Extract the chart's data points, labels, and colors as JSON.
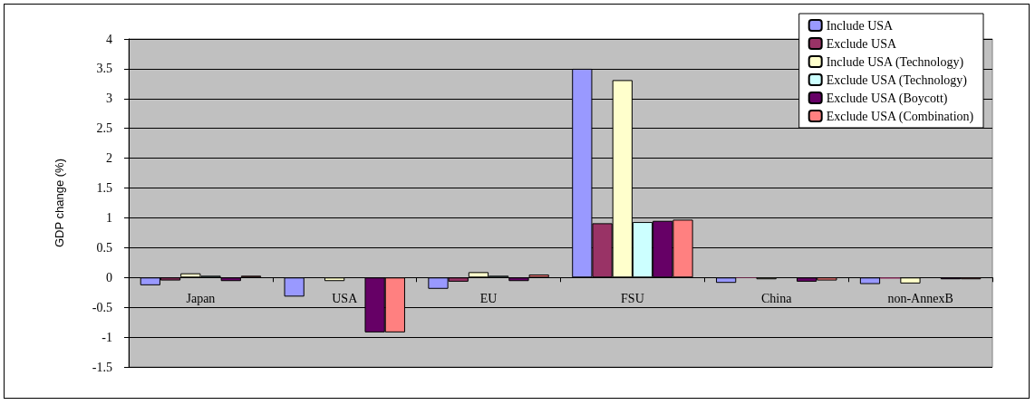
{
  "chart_data": {
    "type": "bar",
    "ylabel": "GDP change (%)",
    "categories": [
      "Japan",
      "USA",
      "EU",
      "FSU",
      "China",
      "non-AnnexB"
    ],
    "series": [
      {
        "name": "Include USA",
        "color": "#9999ff",
        "values": [
          -0.13,
          -0.32,
          -0.19,
          3.5,
          -0.09,
          -0.11
        ]
      },
      {
        "name": "Exclude USA",
        "color": "#993366",
        "values": [
          -0.05,
          null,
          -0.07,
          0.91,
          -0.01,
          -0.02
        ]
      },
      {
        "name": "Include USA (Technology)",
        "color": "#ffffcc",
        "values": [
          0.07,
          -0.06,
          0.09,
          3.31,
          -0.03,
          -0.1
        ]
      },
      {
        "name": "Exclude USA (Technology)",
        "color": "#ccffff",
        "values": [
          0.03,
          null,
          0.03,
          0.93,
          null,
          null
        ]
      },
      {
        "name": "Exclude USA (Boycott)",
        "color": "#660066",
        "values": [
          -0.06,
          -0.92,
          -0.06,
          0.95,
          -0.07,
          -0.03
        ]
      },
      {
        "name": "Exclude USA (Combination)",
        "color": "#ff8080",
        "values": [
          0.03,
          -0.92,
          0.05,
          0.97,
          -0.05,
          -0.03
        ]
      }
    ],
    "ylim": [
      -1.5,
      4
    ],
    "yticks": [
      -1.5,
      -1,
      -0.5,
      0,
      0.5,
      1,
      1.5,
      2,
      2.5,
      3,
      3.5,
      4
    ],
    "grid": "y",
    "legend": "top right"
  }
}
